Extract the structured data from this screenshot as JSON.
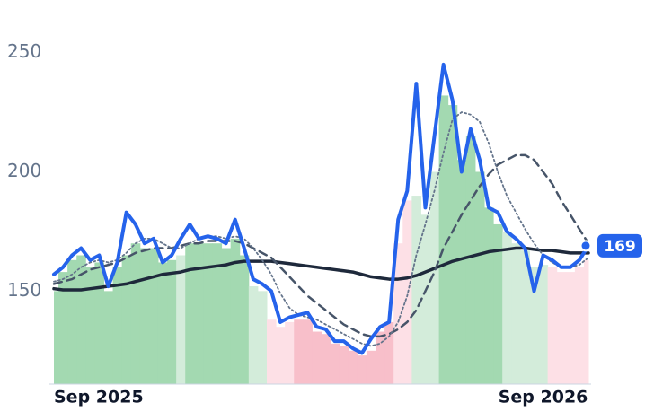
{
  "chart_data": {
    "type": "line",
    "categories": [
      "Sep 2025",
      null,
      null,
      null,
      null,
      null,
      null,
      null,
      null,
      null,
      null,
      null,
      null,
      null,
      null,
      null,
      null,
      null,
      null,
      null,
      null,
      null,
      null,
      null,
      null,
      null,
      null,
      null,
      null,
      null,
      null,
      null,
      null,
      null,
      null,
      null,
      null,
      null,
      null,
      null,
      null,
      null,
      null,
      null,
      null,
      null,
      null,
      null,
      null,
      null,
      null,
      null,
      null,
      null,
      "Sep 2026",
      null,
      null,
      null,
      null,
      null
    ],
    "ylim": [
      111,
      257
    ],
    "yticks": [
      150,
      200,
      250
    ],
    "bars": {
      "values": [
        150,
        158,
        163,
        165,
        160,
        162,
        150,
        160,
        165,
        170,
        168,
        168,
        162,
        163,
        165,
        170,
        170,
        170,
        170,
        168,
        172,
        165,
        152,
        150,
        138,
        135,
        137,
        138,
        138,
        133,
        132,
        128,
        127,
        125,
        123,
        125,
        133,
        137,
        170,
        188,
        190,
        182,
        200,
        232,
        228,
        205,
        215,
        200,
        185,
        178,
        175,
        170,
        167,
        160,
        161,
        160,
        158,
        158,
        160,
        163
      ],
      "colors": [
        "#a3d9b1",
        "#a3d9b1",
        "#a3d9b1",
        "#a3d9b1",
        "#a3d9b1",
        "#a3d9b1",
        "#a3d9b1",
        "#a3d9b1",
        "#a3d9b1",
        "#a3d9b1",
        "#a3d9b1",
        "#a3d9b1",
        "#a3d9b1",
        "#a3d9b1",
        "#d3ecda",
        "#a3d9b1",
        "#a3d9b1",
        "#a3d9b1",
        "#a3d9b1",
        "#a3d9b1",
        "#a3d9b1",
        "#a3d9b1",
        "#d3ecda",
        "#d3ecda",
        "#fde0e6",
        "#fde0e6",
        "#fde0e6",
        "#f8bfca",
        "#f8bfca",
        "#f8bfca",
        "#f8bfca",
        "#f8bfca",
        "#f8bfca",
        "#f8bfca",
        "#f8bfca",
        "#f8bfca",
        "#f8bfca",
        "#f8bfca",
        "#fde0e6",
        "#fde0e6",
        "#d3ecda",
        "#d3ecda",
        "#d3ecda",
        "#a3d9b1",
        "#a3d9b1",
        "#a3d9b1",
        "#a3d9b1",
        "#a3d9b1",
        "#a3d9b1",
        "#a3d9b1",
        "#d3ecda",
        "#d3ecda",
        "#d3ecda",
        "#d3ecda",
        "#d3ecda",
        "#fde0e6",
        "#fde0e6",
        "#fde0e6",
        "#fde0e6",
        "#fde0e6"
      ]
    },
    "series": [
      {
        "color": "#1e293b",
        "style": "solid",
        "width": 3.5,
        "values": [
          151,
          150.5,
          150.5,
          150.5,
          151,
          151.5,
          152,
          152.5,
          153,
          154,
          155,
          156,
          157,
          157.5,
          158,
          159,
          159.5,
          160,
          160.5,
          161,
          162,
          162.5,
          162.5,
          162.5,
          162.5,
          162,
          161.5,
          161,
          160.5,
          160,
          159.5,
          159,
          158.5,
          158,
          157,
          156,
          155.5,
          155,
          155,
          155.5,
          156.5,
          158,
          159.5,
          161,
          162.5,
          163.5,
          164.5,
          165.5,
          166.5,
          167,
          167.5,
          168,
          168,
          167.5,
          167,
          167,
          166.5,
          166,
          166,
          166
        ]
      },
      {
        "color": "#475569",
        "style": "dashed",
        "width": 2.5,
        "values": [
          153,
          154,
          155,
          157,
          159,
          160,
          161,
          162,
          164,
          166,
          167,
          168,
          168,
          168,
          169,
          170,
          170,
          171,
          171,
          171,
          171,
          170,
          168,
          166,
          164,
          160,
          156,
          152,
          148,
          145,
          142,
          139,
          136,
          134,
          132,
          131,
          131,
          132,
          134,
          137,
          142,
          150,
          158,
          168,
          175,
          182,
          188,
          194,
          199,
          203,
          205,
          207,
          207,
          205,
          200,
          195,
          188,
          182,
          176,
          170
        ]
      },
      {
        "color": "#64748b",
        "style": "dotted",
        "width": 1.8,
        "values": [
          154,
          155,
          157,
          160,
          162,
          163,
          162,
          163,
          166,
          170,
          172,
          172,
          170,
          168,
          168,
          170,
          172,
          173,
          173,
          172,
          173,
          172,
          168,
          163,
          157,
          149,
          143,
          140,
          139,
          138,
          136,
          134,
          132,
          130,
          128,
          127,
          128,
          131,
          137,
          148,
          165,
          178,
          192,
          208,
          222,
          225,
          224,
          221,
          212,
          200,
          190,
          183,
          176,
          170,
          165,
          162,
          160,
          160,
          161,
          164
        ]
      },
      {
        "color": "#2563eb",
        "style": "solid",
        "width": 4,
        "values": [
          157,
          160,
          165,
          168,
          163,
          165,
          152,
          162,
          183,
          178,
          170,
          172,
          162,
          165,
          172,
          178,
          172,
          173,
          172,
          170,
          180,
          168,
          155,
          153,
          150,
          137,
          139,
          140,
          141,
          135,
          134,
          129,
          129,
          126,
          124,
          130,
          135,
          137,
          180,
          192,
          237,
          185,
          215,
          245,
          230,
          200,
          218,
          205,
          185,
          183,
          175,
          172,
          168,
          150,
          165,
          163,
          160,
          160,
          163,
          169
        ]
      }
    ]
  }
}
